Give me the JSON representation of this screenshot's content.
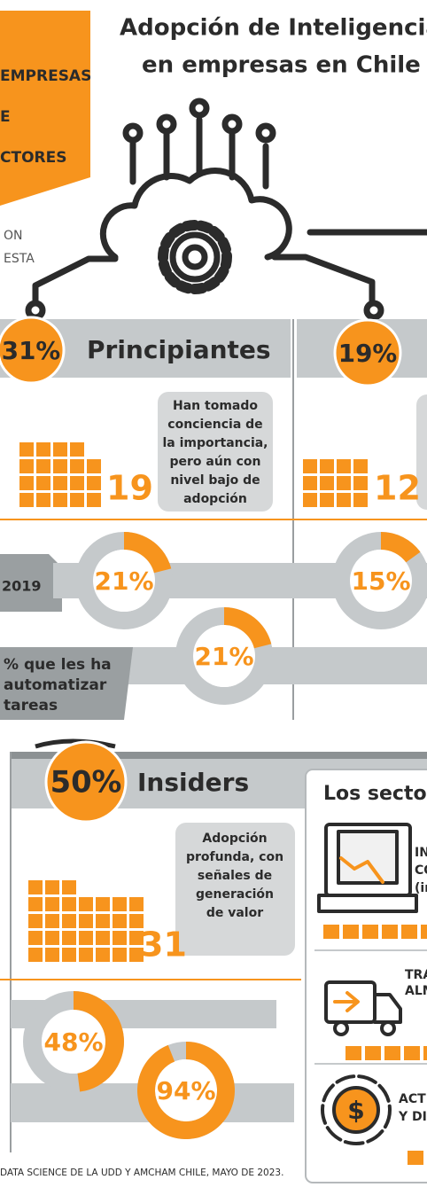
{
  "header": {
    "title_lines": [
      "Adopción de Inteligencia Ar",
      "en empresas en Chile"
    ],
    "side_lines": [
      "EMPRESAS",
      "E",
      "CTORES"
    ],
    "note_lines": [
      "ON",
      "ESTA"
    ]
  },
  "groups": [
    {
      "share": {
        "value": 31,
        "label": "31%"
      },
      "name": "Principiantes",
      "description_lines": [
        "Han tomado",
        "conciencia de",
        "la importancia,",
        "pero aún con",
        "nivel bajo de",
        "adopción"
      ],
      "count": 19,
      "donuts": [
        {
          "value": 21,
          "label": "21%"
        },
        {
          "value": 21,
          "label": "21%"
        }
      ]
    },
    {
      "share": {
        "value": 19,
        "label": "19%"
      },
      "count": 12,
      "donuts": [
        {
          "value": 15,
          "label": "15%"
        }
      ]
    },
    {
      "share": {
        "value": 50,
        "label": "50%"
      },
      "name": "Insiders",
      "description_lines": [
        "Adopción",
        "profunda, con",
        "señales de",
        "generación",
        "de valor"
      ],
      "count": 31,
      "donuts": [
        {
          "value": 48,
          "label": "48%"
        },
        {
          "value": 94,
          "label": "94%"
        }
      ]
    }
  ],
  "row_labels": {
    "first": [
      "2019"
    ],
    "second": [
      "% que les ha",
      "automatizar",
      "tareas"
    ]
  },
  "sectors": {
    "title": "Los sectore",
    "items": [
      {
        "lines": [
          "IN",
          "CO",
          "(in"
        ]
      },
      {
        "lines": [
          "TRA",
          "ALM"
        ]
      },
      {
        "lines": [
          "ACT",
          "Y DI"
        ]
      }
    ]
  },
  "footer": "DATA SCIENCE DE LA UDD Y AMCHAM CHILE, MAYO DE 2023."
}
